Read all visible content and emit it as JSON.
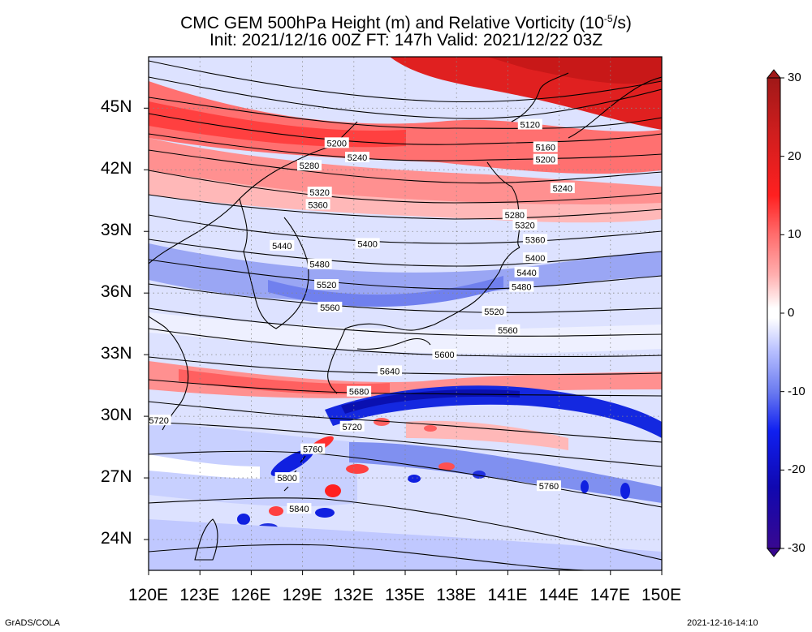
{
  "title": {
    "line1": "CMC GEM 500hPa Height (m) and Relative Vorticity (10",
    "line1_sup": "-5",
    "line1_tail": "/s)",
    "line2": "Init: 2021/12/16 00Z  FT: 147h  Valid: 2021/12/22 03Z"
  },
  "credits": {
    "left": "GrADS/COLA",
    "right": "2021-12-16-14:10"
  },
  "map": {
    "lon_range": [
      120,
      150
    ],
    "lat_range": [
      22.5,
      47.5
    ],
    "lat_ticks": [
      "45N",
      "42N",
      "39N",
      "36N",
      "33N",
      "30N",
      "27N",
      "24N"
    ],
    "lat_values": [
      45,
      42,
      39,
      36,
      33,
      30,
      27,
      24
    ],
    "lon_ticks": [
      "120E",
      "123E",
      "126E",
      "129E",
      "132E",
      "135E",
      "138E",
      "141E",
      "144E",
      "147E",
      "150E"
    ],
    "lon_values": [
      120,
      123,
      126,
      129,
      132,
      135,
      138,
      141,
      144,
      147,
      150
    ],
    "contour_labels": [
      {
        "text": "5120",
        "lon": 142.3,
        "lat": 44.2
      },
      {
        "text": "5160",
        "lon": 143.2,
        "lat": 43.1
      },
      {
        "text": "5200",
        "lon": 131.0,
        "lat": 43.3
      },
      {
        "text": "5200",
        "lon": 143.2,
        "lat": 42.5
      },
      {
        "text": "5240",
        "lon": 132.2,
        "lat": 42.6
      },
      {
        "text": "5240",
        "lon": 144.2,
        "lat": 41.1
      },
      {
        "text": "5280",
        "lon": 129.4,
        "lat": 42.2
      },
      {
        "text": "5280",
        "lon": 141.4,
        "lat": 39.8
      },
      {
        "text": "5320",
        "lon": 130.0,
        "lat": 40.9
      },
      {
        "text": "5320",
        "lon": 142.0,
        "lat": 39.3
      },
      {
        "text": "5360",
        "lon": 129.9,
        "lat": 40.3
      },
      {
        "text": "5360",
        "lon": 142.6,
        "lat": 38.6
      },
      {
        "text": "5400",
        "lon": 132.8,
        "lat": 38.4
      },
      {
        "text": "5400",
        "lon": 142.6,
        "lat": 37.7
      },
      {
        "text": "5440",
        "lon": 127.8,
        "lat": 38.3
      },
      {
        "text": "5440",
        "lon": 142.1,
        "lat": 37.0
      },
      {
        "text": "5480",
        "lon": 130.0,
        "lat": 37.4
      },
      {
        "text": "5480",
        "lon": 141.8,
        "lat": 36.3
      },
      {
        "text": "5520",
        "lon": 130.4,
        "lat": 36.4
      },
      {
        "text": "5520",
        "lon": 140.2,
        "lat": 35.1
      },
      {
        "text": "5560",
        "lon": 130.6,
        "lat": 35.3
      },
      {
        "text": "5560",
        "lon": 141.0,
        "lat": 34.2
      },
      {
        "text": "5600",
        "lon": 137.3,
        "lat": 33.0
      },
      {
        "text": "5640",
        "lon": 134.1,
        "lat": 32.2
      },
      {
        "text": "5680",
        "lon": 132.3,
        "lat": 31.2
      },
      {
        "text": "5720",
        "lon": 120.6,
        "lat": 29.8
      },
      {
        "text": "5720",
        "lon": 131.9,
        "lat": 29.5
      },
      {
        "text": "5760",
        "lon": 129.6,
        "lat": 28.4
      },
      {
        "text": "5760",
        "lon": 143.4,
        "lat": 26.6
      },
      {
        "text": "5800",
        "lon": 128.1,
        "lat": 27.0
      },
      {
        "text": "5840",
        "lon": 128.8,
        "lat": 25.5
      }
    ]
  },
  "colorbar": {
    "ticks": [
      "30",
      "20",
      "10",
      "0",
      "-10",
      "-20",
      "-30"
    ],
    "tick_values": [
      30,
      20,
      10,
      0,
      -10,
      -20,
      -30
    ],
    "colors": [
      "#a01818",
      "#c81e1e",
      "#ff2020",
      "#ff6060",
      "#ff9898",
      "#ffc8c8",
      "#ffffff",
      "#c8d0ff",
      "#98a4f8",
      "#6070f0",
      "#2038e8",
      "#0808c8",
      "#1810a0",
      "#300890"
    ]
  }
}
